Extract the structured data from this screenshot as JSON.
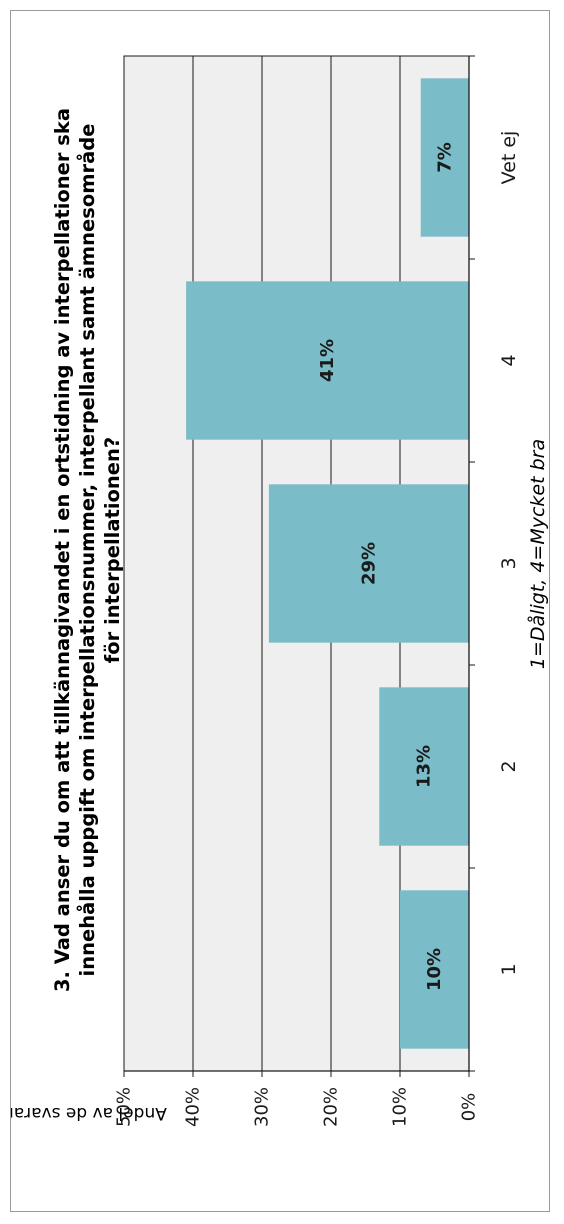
{
  "chart_data": {
    "type": "bar",
    "orientation": "vertical",
    "title_lines": [
      "3. Vad anser du om att tillkännagivandet i en ortstidning av interpellationer ska",
      "innehålla uppgift om interpellationsnummer, interpellant samt ämnesområde",
      "för interpellationen?"
    ],
    "categories": [
      "1",
      "2",
      "3",
      "4",
      "Vet ej"
    ],
    "values": [
      10,
      13,
      29,
      41,
      7
    ],
    "data_labels": [
      "10%",
      "13%",
      "29%",
      "41%",
      "7%"
    ],
    "xlabel": "1=Dåligt, 4=Mycket bra",
    "ylabel": "Andel av de svarande i procent",
    "ylim": [
      0,
      50
    ],
    "yticks": [
      "0%",
      "10%",
      "20%",
      "30%",
      "40%",
      "50%"
    ],
    "grid": true,
    "legend": "none",
    "colors": {
      "bar": "#7bbcc9",
      "plot_background": "#efefef",
      "grid": "#1a1a1a"
    }
  }
}
